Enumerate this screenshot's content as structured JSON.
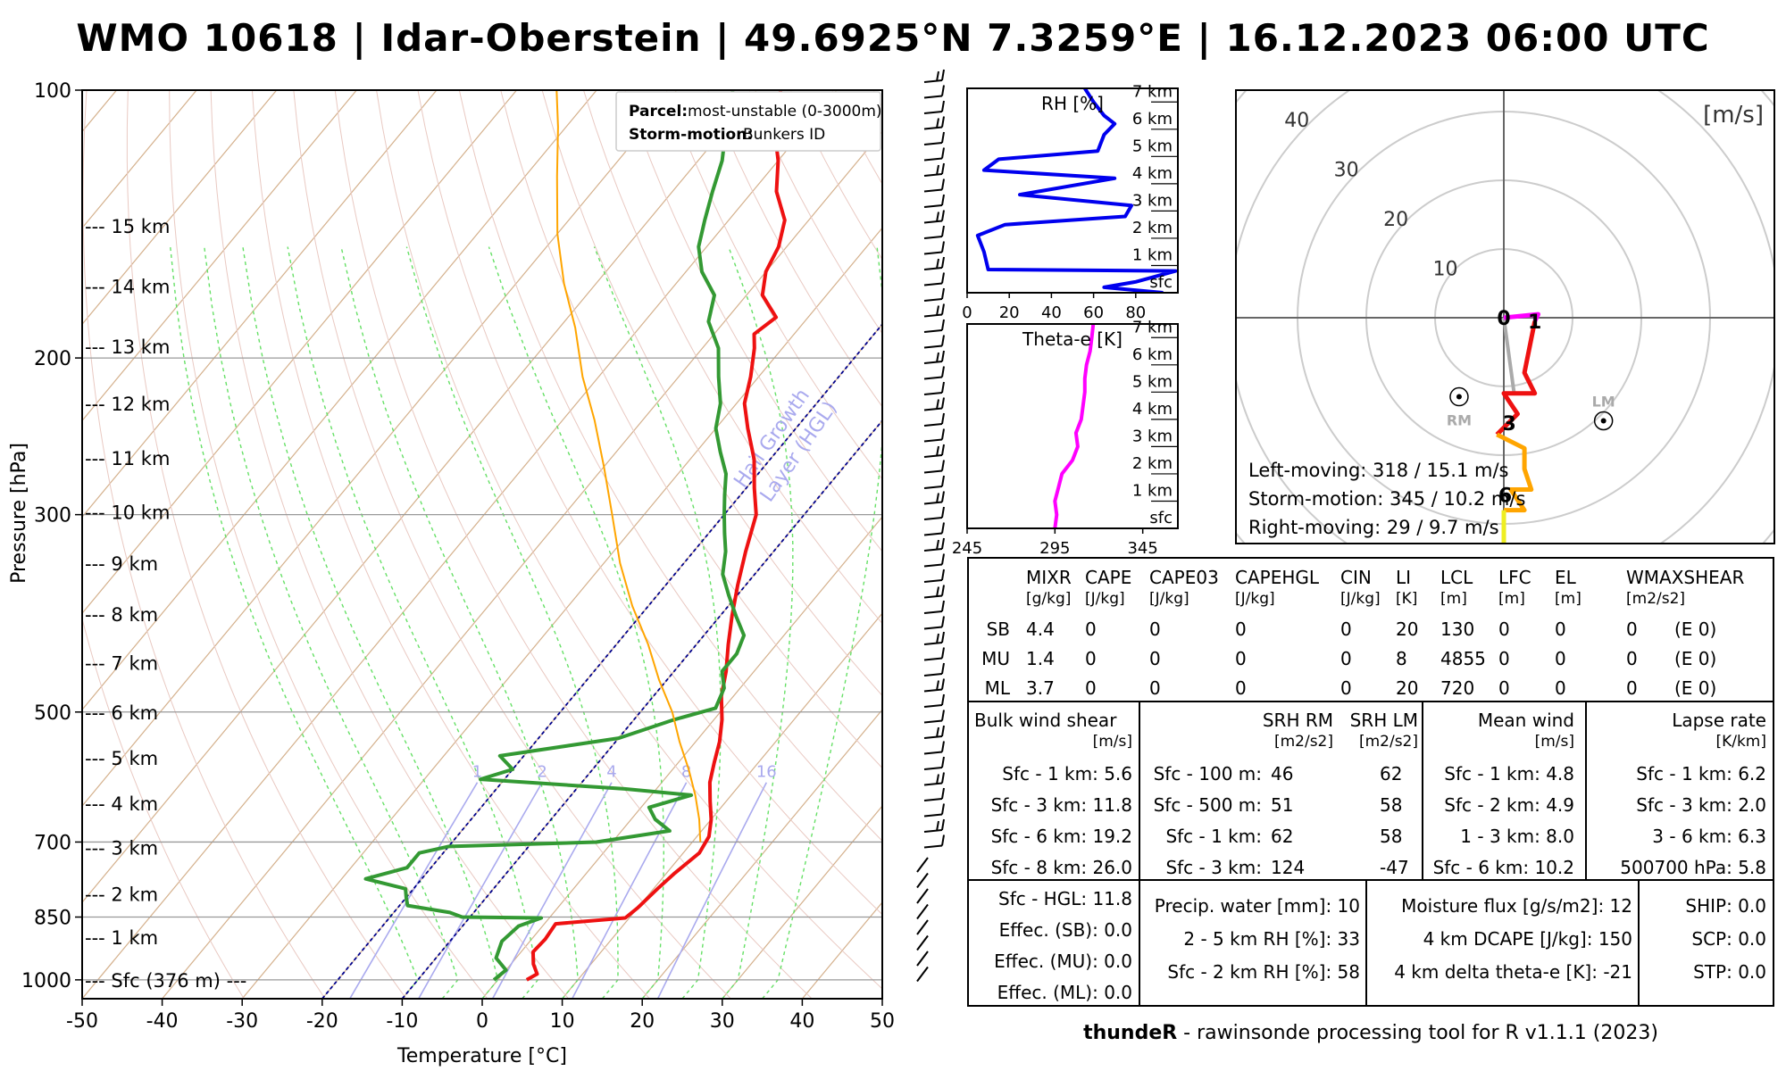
{
  "title": "WMO 10618 | Idar-Oberstein | 49.6925°N 7.3259°E | 16.12.2023 06:00 UTC",
  "footer": {
    "brand": "thundeR",
    "rest": " - rawinsonde processing tool for R v1.1.1 (2023)"
  },
  "skewt": {
    "ylabel": "Pressure [hPa]",
    "xlabel": "Temperature [°C]",
    "pressure_ticks": [
      100,
      200,
      300,
      500,
      700,
      850,
      1000
    ],
    "temp_ticks": [
      -50,
      -40,
      -30,
      -20,
      -10,
      0,
      10,
      20,
      30,
      40,
      50
    ],
    "height_labels": [
      {
        "p": 1000,
        "label": "Sfc (376 m) ---"
      },
      {
        "p": 895,
        "label": "1 km"
      },
      {
        "p": 800,
        "label": "2 km"
      },
      {
        "p": 710,
        "label": "3 km"
      },
      {
        "p": 633,
        "label": "4 km"
      },
      {
        "p": 563,
        "label": "5 km"
      },
      {
        "p": 500,
        "label": "6 km"
      },
      {
        "p": 440,
        "label": "7 km"
      },
      {
        "p": 388,
        "label": "8 km"
      },
      {
        "p": 340,
        "label": "9 km"
      },
      {
        "p": 298,
        "label": "10 km"
      },
      {
        "p": 259,
        "label": "11 km"
      },
      {
        "p": 225,
        "label": "12 km"
      },
      {
        "p": 194,
        "label": "13 km"
      },
      {
        "p": 166,
        "label": "14 km"
      },
      {
        "p": 142,
        "label": "15 km"
      }
    ],
    "legend": {
      "parcel_label": "Parcel:",
      "parcel_value": "most-unstable (0-3000m)",
      "storm_label": "Storm-motion:",
      "storm_value": "Bunkers ID"
    },
    "hgl_label": [
      "Hail Growth",
      "Layer (HGL)"
    ],
    "mixing_labels": [
      "1",
      "2",
      "4",
      "8",
      "16"
    ],
    "colors": {
      "temperature": "#ee1111",
      "dewpoint": "#339933",
      "parcel": "#ffa500",
      "hgl": "#00008b"
    }
  },
  "chart_data": [
    {
      "type": "line",
      "name": "skew-T log-p sounding",
      "title": "WMO 10618 | Idar-Oberstein | 49.6925°N 7.3259°E | 16.12.2023 06:00 UTC",
      "xlabel": "Temperature [°C]",
      "ylabel": "Pressure [hPa]",
      "xlim": [
        -50,
        50
      ],
      "ylim": [
        1000,
        100
      ],
      "series": [
        {
          "name": "Temperature",
          "points": [
            [
              3.6,
              1000
            ],
            [
              4.3,
              985
            ],
            [
              2.8,
              960
            ],
            [
              1.5,
              930
            ],
            [
              1.7,
              900
            ],
            [
              1.4,
              865
            ],
            [
              9.5,
              852
            ],
            [
              10,
              830
            ],
            [
              10.5,
              790
            ],
            [
              11,
              760
            ],
            [
              12,
              720
            ],
            [
              11.5,
              690
            ],
            [
              10,
              660
            ],
            [
              8,
              630
            ],
            [
              6,
              600
            ],
            [
              4.5,
              570
            ],
            [
              3,
              540
            ],
            [
              1,
              510
            ],
            [
              -1.5,
              480
            ],
            [
              -3.5,
              450
            ],
            [
              -6,
              420
            ],
            [
              -8.5,
              390
            ],
            [
              -11,
              360
            ],
            [
              -13.5,
              330
            ],
            [
              -16,
              300
            ],
            [
              -19,
              280
            ],
            [
              -22,
              260
            ],
            [
              -26,
              240
            ],
            [
              -29,
              225
            ],
            [
              -31,
              210
            ],
            [
              -33.5,
              195
            ],
            [
              -35,
              188
            ],
            [
              -34,
              180
            ],
            [
              -38,
              170
            ],
            [
              -40,
              160
            ],
            [
              -41,
              150
            ],
            [
              -43,
              140
            ],
            [
              -47,
              130
            ],
            [
              -50,
              120
            ],
            [
              -54,
              110
            ],
            [
              -57,
              100
            ]
          ]
        },
        {
          "name": "Dewpoint",
          "points": [
            [
              -0.5,
              1000
            ],
            [
              0,
              975
            ],
            [
              -2.5,
              945
            ],
            [
              -3.5,
              905
            ],
            [
              -3,
              870
            ],
            [
              -1,
              852
            ],
            [
              -11,
              850
            ],
            [
              -13,
              840
            ],
            [
              -19,
              825
            ],
            [
              -20,
              808
            ],
            [
              -21,
              790
            ],
            [
              -27,
              770
            ],
            [
              -23,
              748
            ],
            [
              -23,
              720
            ],
            [
              -20,
              708
            ],
            [
              -2,
              700
            ],
            [
              6,
              680
            ],
            [
              3,
              660
            ],
            [
              1,
              640
            ],
            [
              5,
              620
            ],
            [
              -4,
              610
            ],
            [
              -23,
              595
            ],
            [
              -20,
              580
            ],
            [
              -23,
              560
            ],
            [
              -10,
              535
            ],
            [
              -5,
              510
            ],
            [
              -1,
              495
            ],
            [
              -2,
              470
            ],
            [
              -4,
              450
            ],
            [
              -4,
              430
            ],
            [
              -5,
              410
            ],
            [
              -8,
              390
            ],
            [
              -11,
              370
            ],
            [
              -14,
              350
            ],
            [
              -16,
              330
            ],
            [
              -18,
              315
            ],
            [
              -20,
              300
            ],
            [
              -22,
              285
            ],
            [
              -24,
              270
            ],
            [
              -27,
              255
            ],
            [
              -30,
              240
            ],
            [
              -32,
              225
            ],
            [
              -35,
              210
            ],
            [
              -38,
              195
            ],
            [
              -42,
              182
            ],
            [
              -44,
              170
            ],
            [
              -48,
              160
            ],
            [
              -51,
              150
            ],
            [
              -53,
              140
            ],
            [
              -55,
              130
            ],
            [
              -57,
              120
            ],
            [
              -60,
              110
            ],
            [
              -63,
              100
            ]
          ]
        },
        {
          "name": "Parcel",
          "points": [
            [
              11,
              700
            ],
            [
              8.5,
              660
            ],
            [
              5.5,
              620
            ],
            [
              2,
              580
            ],
            [
              -2,
              540
            ],
            [
              -6,
              500
            ],
            [
              -11,
              460
            ],
            [
              -16,
              420
            ],
            [
              -22,
              380
            ],
            [
              -28,
              340
            ],
            [
              -34,
              300
            ],
            [
              -40,
              265
            ],
            [
              -46,
              235
            ],
            [
              -52,
              210
            ],
            [
              -58,
              185
            ],
            [
              -64,
              165
            ],
            [
              -70,
              145
            ],
            [
              -76,
              125
            ],
            [
              -81,
              110
            ],
            [
              -85,
              100
            ]
          ]
        }
      ]
    },
    {
      "type": "line",
      "name": "RH profile",
      "title": "RH [%]",
      "xlim": [
        0,
        100
      ],
      "ylim": [
        0,
        7.5
      ],
      "x_ticks": [
        0,
        20,
        40,
        60,
        80
      ],
      "y_ticks": [
        "sfc",
        "1 km",
        "2 km",
        "3 km",
        "4 km",
        "5 km",
        "6 km",
        "7 km"
      ],
      "series": [
        {
          "name": "RH",
          "points": [
            [
              93,
              0
            ],
            [
              65,
              0.2
            ],
            [
              80,
              0.4
            ],
            [
              99,
              0.8
            ],
            [
              10,
              0.85
            ],
            [
              8,
              1.5
            ],
            [
              5,
              2.1
            ],
            [
              18,
              2.5
            ],
            [
              75,
              2.8
            ],
            [
              78,
              3.2
            ],
            [
              25,
              3.6
            ],
            [
              70,
              4.2
            ],
            [
              8,
              4.5
            ],
            [
              15,
              4.9
            ],
            [
              62,
              5.2
            ],
            [
              65,
              5.8
            ],
            [
              70,
              6.2
            ],
            [
              65,
              6.5
            ],
            [
              60,
              7
            ],
            [
              55,
              7.6
            ]
          ]
        }
      ]
    },
    {
      "type": "line",
      "name": "Theta-e profile",
      "title": "Theta-e [K]",
      "xlim": [
        245,
        365
      ],
      "ylim": [
        0,
        7.5
      ],
      "x_ticks": [
        245,
        295,
        345
      ],
      "y_ticks": [
        "sfc",
        "1 km",
        "2 km",
        "3 km",
        "4 km",
        "5 km",
        "6 km",
        "7 km"
      ],
      "series": [
        {
          "name": "Theta-e",
          "points": [
            [
              295,
              0
            ],
            [
              296,
              0.5
            ],
            [
              295,
              1
            ],
            [
              297,
              1.5
            ],
            [
              299,
              2
            ],
            [
              305,
              2.5
            ],
            [
              308,
              3
            ],
            [
              307,
              3.5
            ],
            [
              310,
              4
            ],
            [
              311,
              4.5
            ],
            [
              312,
              5
            ],
            [
              312,
              5.5
            ],
            [
              313,
              6
            ],
            [
              315,
              6.5
            ],
            [
              316,
              7
            ],
            [
              317,
              7.6
            ]
          ]
        }
      ]
    },
    {
      "type": "line",
      "name": "Hodograph",
      "title": "[m/s]",
      "ring_labels": [
        "10",
        "20",
        "30",
        "40"
      ],
      "series": [
        {
          "name": "0-1 km",
          "color": "#ff00ff",
          "points": [
            [
              0,
              0
            ],
            [
              5,
              0.5
            ],
            [
              4.5,
              -0.5
            ]
          ]
        },
        {
          "name": "1-3 km",
          "color": "#ee1111",
          "points": [
            [
              4.5,
              -0.5
            ],
            [
              3,
              -8
            ],
            [
              4.5,
              -11
            ],
            [
              0,
              -11
            ],
            [
              2,
              -14
            ],
            [
              -1,
              -17
            ]
          ]
        },
        {
          "name": "3-6 km",
          "color": "#ffa500",
          "points": [
            [
              -1,
              -17
            ],
            [
              3,
              -19
            ],
            [
              3,
              -22
            ],
            [
              4,
              -25
            ],
            [
              1,
              -25
            ],
            [
              3,
              -28
            ],
            [
              0,
              -28
            ]
          ]
        },
        {
          "name": "6-9 km",
          "color": "#eeee22",
          "points": [
            [
              0,
              -28
            ],
            [
              0,
              -33
            ],
            [
              -3,
              -35
            ],
            [
              -1,
              -38
            ]
          ]
        },
        {
          "name": "9+ km",
          "color": "#9fc6dc",
          "points": [
            [
              -1,
              -38
            ],
            [
              -5,
              -41
            ],
            [
              -12,
              -42
            ]
          ]
        }
      ],
      "markers": [
        {
          "label": "RM",
          "u": -6.5,
          "v": -11.5
        },
        {
          "label": "LM",
          "u": 14.5,
          "v": -15
        },
        {
          "label": "0",
          "u": 0,
          "v": 0
        },
        {
          "label": "1",
          "u": 4.5,
          "v": -0.5
        },
        {
          "label": "3",
          "u": 0.8,
          "v": -15.3
        },
        {
          "label": "6",
          "u": 0.2,
          "v": -25.8
        }
      ],
      "annotations": [
        "Left-moving: 318 / 15.1 m/s",
        "Storm-motion: 345 / 10.2 m/s",
        "Right-moving: 29 / 9.7 m/s"
      ]
    }
  ],
  "hodograph": {
    "unit": "[m/s]",
    "ring_labels": [
      "10",
      "20",
      "30",
      "40"
    ],
    "markers": {
      "rm": "RM",
      "lm": "LM"
    },
    "points": {
      "p0": "0",
      "p1": "1",
      "p3": "3",
      "p6": "6"
    },
    "lines": [
      "Left-moving: 318 / 15.1 m/s",
      "Storm-motion: 345 / 10.2 m/s",
      "Right-moving: 29 / 9.7 m/s"
    ]
  },
  "rh_panel": {
    "title": "RH [%]",
    "x_ticks": [
      "0",
      "20",
      "40",
      "60",
      "80"
    ],
    "y_ticks": [
      "sfc",
      "1 km",
      "2 km",
      "3 km",
      "4 km",
      "5 km",
      "6 km",
      "7 km"
    ]
  },
  "theta_panel": {
    "title": "Theta-e [K]",
    "x_ticks": [
      "245",
      "295",
      "345"
    ],
    "y_ticks": [
      "sfc",
      "1 km",
      "2 km",
      "3 km",
      "4 km",
      "5 km",
      "6 km",
      "7 km"
    ]
  },
  "table": {
    "headers": [
      "MIXR",
      "CAPE",
      "CAPE03",
      "CAPEHGL",
      "CIN",
      "LI",
      "LCL",
      "LFC",
      "EL",
      "WMAXSHEAR"
    ],
    "units": [
      "[g/kg]",
      "[J/kg]",
      "[J/kg]",
      "[J/kg]",
      "[J/kg]",
      "[K]",
      "[m]",
      "[m]",
      "[m]",
      "[m2/s2]"
    ],
    "rows": [
      {
        "label": "SB",
        "values": [
          "4.4",
          "0",
          "0",
          "0",
          "0",
          "20",
          "130",
          "0",
          "0",
          "0",
          "(E 0)"
        ]
      },
      {
        "label": "MU",
        "values": [
          "1.4",
          "0",
          "0",
          "0",
          "0",
          "8",
          "4855",
          "0",
          "0",
          "0",
          "(E 0)"
        ]
      },
      {
        "label": "ML",
        "values": [
          "3.7",
          "0",
          "0",
          "0",
          "0",
          "20",
          "720",
          "0",
          "0",
          "0",
          "(E 0)"
        ]
      }
    ]
  },
  "shear": {
    "title": "Bulk wind shear",
    "unit": "[m/s]",
    "rows": [
      "Sfc - 1 km: 5.6",
      "Sfc - 3 km: 11.8",
      "Sfc - 6 km: 19.2",
      "Sfc - 8 km: 26.0",
      "Sfc - HGL: 11.8",
      "Effec. (SB): 0.0",
      "Effec. (MU): 0.0",
      "Effec. (ML): 0.0"
    ]
  },
  "srh": {
    "title1": "SRH RM",
    "title2": "SRH LM",
    "unit1": "[m2/s2]",
    "unit2": "[m2/s2]",
    "rows": [
      {
        "label": "Sfc - 100 m:",
        "rm": "46",
        "lm": "62"
      },
      {
        "label": "Sfc - 500 m:",
        "rm": "51",
        "lm": "58"
      },
      {
        "label": "Sfc - 1 km:",
        "rm": "62",
        "lm": "58"
      },
      {
        "label": "Sfc - 3 km:",
        "rm": "124",
        "lm": "-47"
      }
    ]
  },
  "mean_wind": {
    "title": "Mean wind",
    "unit": "[m/s]",
    "rows": [
      "Sfc - 1 km: 4.8",
      "Sfc - 2 km: 4.9",
      "1 - 3 km: 8.0",
      "Sfc - 6 km: 10.2"
    ]
  },
  "lapse_rate": {
    "title": "Lapse rate",
    "unit": "[K/km]",
    "rows": [
      "Sfc - 1 km: 6.2",
      "Sfc - 3 km: 2.0",
      "3 - 6 km: 6.3",
      "500700 hPa: 5.8"
    ]
  },
  "moisture": {
    "rows": [
      "Precip. water [mm]: 10",
      "2 - 5 km RH [%]: 33",
      "Sfc - 2 km RH [%]: 58"
    ]
  },
  "flux": {
    "rows": [
      "Moisture flux [g/s/m2]: 12",
      "4 km DCAPE [J/kg]: 150",
      "4 km delta theta-e [K]: -21"
    ]
  },
  "composites": {
    "rows": [
      "SHIP: 0.0",
      "SCP: 0.0",
      "STP: 0.0"
    ]
  }
}
